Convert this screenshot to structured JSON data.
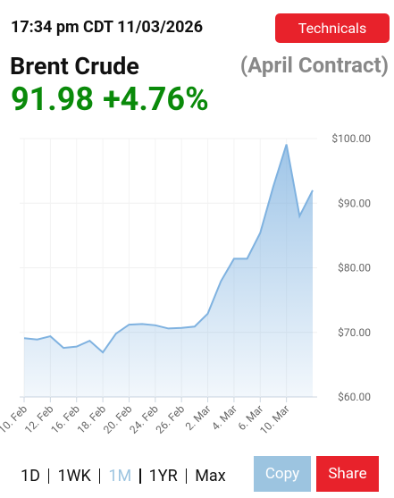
{
  "header": {
    "timestamp": "17:34 pm CDT 11/03/2026",
    "button": "Technicals"
  },
  "instrument": {
    "name": "Brent Crude",
    "contract": "(April Contract)",
    "price": "91.98",
    "change": "+4.76%"
  },
  "chart_data": {
    "type": "area",
    "color": "#7fb2e0",
    "grid": true,
    "categories": [
      "10. Feb",
      null,
      "12. Feb",
      null,
      "16. Feb",
      null,
      "18. Feb",
      null,
      "20. Feb",
      null,
      "24. Feb",
      null,
      "26. Feb",
      null,
      "2. Mar",
      null,
      "4. Mar",
      null,
      "6. Mar",
      null,
      "10. Mar",
      null,
      null
    ],
    "values": [
      69.1,
      68.9,
      69.4,
      67.6,
      67.8,
      68.7,
      66.9,
      69.8,
      71.2,
      71.3,
      71.1,
      70.6,
      70.7,
      70.9,
      72.9,
      77.9,
      81.4,
      81.4,
      85.4,
      92.6,
      99.1,
      88.0,
      92.0
    ],
    "ylim": [
      60,
      100
    ],
    "yticks": [
      {
        "value": 60,
        "label": "$60.00"
      },
      {
        "value": 70,
        "label": "$70.00"
      },
      {
        "value": 80,
        "label": "$80.00"
      },
      {
        "value": 90,
        "label": "$90.00"
      },
      {
        "value": 100,
        "label": "$100.00"
      }
    ]
  },
  "ranges": [
    "1D",
    "1WK",
    "1M",
    "1YR",
    "Max"
  ],
  "active_range": 2,
  "buttons": [
    "Copy",
    "Share"
  ]
}
